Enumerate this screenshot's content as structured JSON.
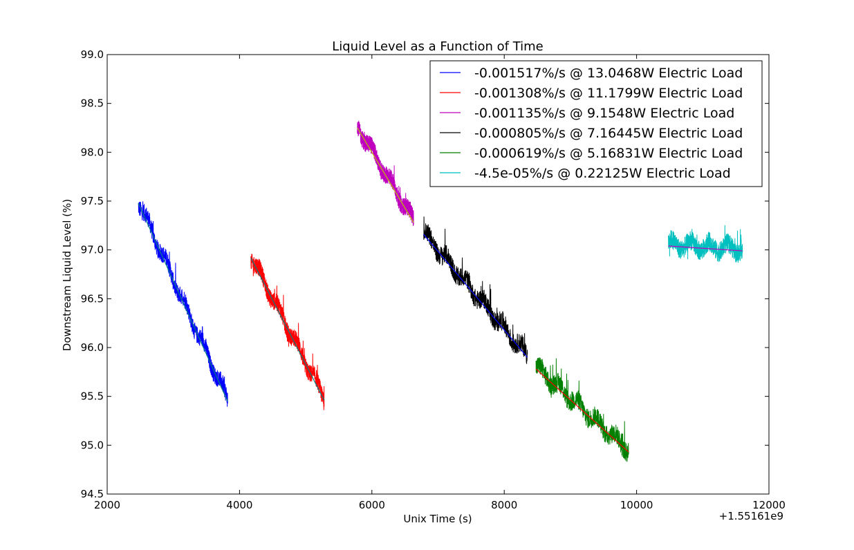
{
  "chart_data": {
    "type": "line",
    "title": "Liquid Level as a Function of Time",
    "xlabel": "Unix Time (s)",
    "ylabel": "Downstream Liquid Level (%)",
    "x_offset_label": "+1.55161e9",
    "xlim": [
      2000,
      12000
    ],
    "ylim": [
      94.5,
      99.0
    ],
    "xticks": [
      2000,
      4000,
      6000,
      8000,
      10000,
      12000
    ],
    "xtick_labels": [
      "2000",
      "4000",
      "6000",
      "8000",
      "10000",
      "12000"
    ],
    "yticks": [
      94.5,
      95.0,
      95.5,
      96.0,
      96.5,
      97.0,
      97.5,
      98.0,
      98.5,
      99.0
    ],
    "ytick_labels": [
      "94.5",
      "95.0",
      "95.5",
      "96.0",
      "96.5",
      "97.0",
      "97.5",
      "98.0",
      "98.5",
      "99.0"
    ],
    "grid": false,
    "legend_position": "top-right",
    "series": [
      {
        "name": "-0.001517%/s @ 13.0468W Electric Load",
        "color": "#0000ff",
        "fit_color": "#008080",
        "x_range": [
          2470,
          3820
        ],
        "fit": [
          [
            2470,
            97.48
          ],
          [
            3820,
            95.45
          ]
        ],
        "noise_amp": 0.18
      },
      {
        "name": "-0.001308%/s @ 11.1799W Electric Load",
        "color": "#ff0000",
        "fit_color": "#008080",
        "x_range": [
          4170,
          5280
        ],
        "fit": [
          [
            4170,
            96.92
          ],
          [
            5280,
            95.46
          ]
        ],
        "noise_amp": 0.18
      },
      {
        "name": "-0.001135%/s @ 9.1548W Electric Load",
        "color": "#bf00bf",
        "fit_color": "#bfbf00",
        "x_range": [
          5780,
          6630
        ],
        "fit": [
          [
            5780,
            98.25
          ],
          [
            6630,
            97.28
          ]
        ],
        "noise_amp": 0.18
      },
      {
        "name": "-0.000805%/s @ 7.16445W Electric Load",
        "color": "#000000",
        "fit_color": "#0000ff",
        "x_range": [
          6780,
          8350
        ],
        "fit": [
          [
            6780,
            97.16
          ],
          [
            8350,
            95.9
          ]
        ],
        "noise_amp": 0.2
      },
      {
        "name": "-0.000619%/s @ 5.16831W Electric Load",
        "color": "#008000",
        "fit_color": "#ff0000",
        "x_range": [
          8480,
          9880
        ],
        "fit": [
          [
            8480,
            95.78
          ],
          [
            9880,
            94.93
          ]
        ],
        "noise_amp": 0.2
      },
      {
        "name": "-4.5e-05%/s @ 0.22125W Electric Load",
        "color": "#00bfbf",
        "fit_color": "#bf00bf",
        "x_range": [
          10480,
          11600
        ],
        "fit": [
          [
            10480,
            97.04
          ],
          [
            11600,
            96.99
          ]
        ],
        "noise_amp": 0.2
      }
    ]
  }
}
